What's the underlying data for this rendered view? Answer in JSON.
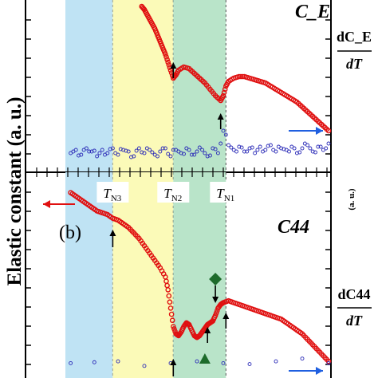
{
  "chart_data": [
    {
      "panel_label": "",
      "title": "C_E",
      "type": "scatter",
      "ylabel": "Elastic constant (a. u.)",
      "y2label_num": "dC_E",
      "y2label_den": "dT",
      "xlim": [
        0,
        100
      ],
      "ylim": [
        0,
        100
      ],
      "regions": [
        {
          "name": "phase-1",
          "from": 0,
          "to": 18,
          "color": "#bfe3f4"
        },
        {
          "name": "phase-2",
          "from": 18,
          "to": 41,
          "color": "#fbfab8"
        },
        {
          "name": "phase-3",
          "from": 41,
          "to": 61,
          "color": "#b9e4c9"
        }
      ],
      "series": [
        {
          "color": "#e01010",
          "points": [
            [
              29,
              100
            ],
            [
              30,
              98
            ],
            [
              31,
              95
            ],
            [
              32,
              92
            ],
            [
              33,
              89
            ],
            [
              34,
              86
            ],
            [
              35,
              82
            ],
            [
              36,
              78
            ],
            [
              37,
              74
            ],
            [
              38,
              70
            ],
            [
              39,
              65
            ],
            [
              40,
              60
            ],
            [
              41,
              55
            ],
            [
              42,
              57
            ],
            [
              43,
              60
            ],
            [
              45,
              62
            ],
            [
              47,
              61
            ],
            [
              49,
              58
            ],
            [
              51,
              55
            ],
            [
              53,
              52
            ],
            [
              55,
              48
            ],
            [
              57,
              44
            ],
            [
              59,
              41
            ],
            [
              60,
              44
            ],
            [
              61,
              50
            ],
            [
              62,
              53
            ],
            [
              64,
              55
            ],
            [
              66,
              56
            ],
            [
              68,
              56
            ],
            [
              70,
              55
            ],
            [
              72,
              54
            ],
            [
              74,
              53
            ],
            [
              76,
              52
            ],
            [
              78,
              50
            ],
            [
              80,
              48
            ],
            [
              82,
              46
            ],
            [
              84,
              44
            ],
            [
              86,
              42
            ],
            [
              88,
              40
            ],
            [
              90,
              37
            ],
            [
              92,
              34
            ],
            [
              94,
              31
            ],
            [
              96,
              28
            ],
            [
              98,
              25
            ],
            [
              100,
              22
            ]
          ]
        },
        {
          "color": "#2d2db8",
          "points": [
            [
              2,
              8
            ],
            [
              4,
              10
            ],
            [
              6,
              7
            ],
            [
              8,
              11
            ],
            [
              10,
              9
            ],
            [
              12,
              6
            ],
            [
              14,
              10
            ],
            [
              16,
              8
            ],
            [
              18,
              11
            ],
            [
              20,
              7
            ],
            [
              22,
              10
            ],
            [
              24,
              9
            ],
            [
              26,
              6
            ],
            [
              28,
              11
            ],
            [
              30,
              8
            ],
            [
              32,
              10
            ],
            [
              34,
              7
            ],
            [
              36,
              9
            ],
            [
              38,
              11
            ],
            [
              40,
              6
            ],
            [
              42,
              10
            ],
            [
              44,
              8
            ],
            [
              46,
              11
            ],
            [
              48,
              7
            ],
            [
              50,
              9
            ],
            [
              52,
              10
            ],
            [
              54,
              6
            ],
            [
              56,
              11
            ],
            [
              58,
              8
            ],
            [
              60,
              22
            ],
            [
              62,
              13
            ],
            [
              64,
              10
            ],
            [
              66,
              12
            ],
            [
              68,
              9
            ],
            [
              70,
              11
            ],
            [
              72,
              8
            ],
            [
              74,
              12
            ],
            [
              76,
              10
            ],
            [
              78,
              13
            ],
            [
              80,
              9
            ],
            [
              82,
              11
            ],
            [
              84,
              10
            ],
            [
              86,
              12
            ],
            [
              88,
              8
            ],
            [
              90,
              11
            ],
            [
              92,
              13
            ],
            [
              94,
              9
            ],
            [
              96,
              12
            ],
            [
              98,
              10
            ],
            [
              100,
              14
            ]
          ]
        }
      ]
    },
    {
      "panel_label": "(b)",
      "title": "C44",
      "type": "scatter",
      "ylabel": "",
      "y2label_num": "dC44",
      "y2label_den": "dT",
      "y2unit": "(a. u.)",
      "xlim": [
        0,
        100
      ],
      "ylim": [
        0,
        100
      ],
      "transitions": [
        {
          "x": 18,
          "label_main": "T",
          "label_sub": "N3"
        },
        {
          "x": 41,
          "label_main": "T",
          "label_sub": "N2"
        },
        {
          "x": 61,
          "label_main": "T",
          "label_sub": "N1"
        }
      ],
      "series": [
        {
          "color": "#e01010",
          "points": [
            [
              2,
              95
            ],
            [
              4,
              93
            ],
            [
              6,
              91
            ],
            [
              8,
              89
            ],
            [
              10,
              87
            ],
            [
              12,
              85
            ],
            [
              14,
              84
            ],
            [
              16,
              83
            ],
            [
              18,
              81
            ],
            [
              20,
              80
            ],
            [
              22,
              78
            ],
            [
              24,
              76
            ],
            [
              26,
              73
            ],
            [
              28,
              70
            ],
            [
              30,
              66
            ],
            [
              32,
              62
            ],
            [
              34,
              58
            ],
            [
              36,
              54
            ],
            [
              38,
              49
            ],
            [
              39,
              42
            ],
            [
              40,
              32
            ],
            [
              41,
              22
            ],
            [
              42,
              18
            ],
            [
              43,
              17
            ],
            [
              44,
              19
            ],
            [
              45,
              22
            ],
            [
              46,
              24
            ],
            [
              47,
              23
            ],
            [
              48,
              20
            ],
            [
              49,
              17
            ],
            [
              50,
              16
            ],
            [
              51,
              17
            ],
            [
              52,
              19
            ],
            [
              53,
              21
            ],
            [
              54,
              23
            ],
            [
              55,
              24
            ],
            [
              56,
              25
            ],
            [
              57,
              28
            ],
            [
              58,
              32
            ],
            [
              59,
              34
            ],
            [
              60,
              35
            ],
            [
              62,
              36
            ],
            [
              64,
              35
            ],
            [
              66,
              34
            ],
            [
              68,
              33
            ],
            [
              70,
              32
            ],
            [
              72,
              31
            ],
            [
              74,
              30
            ],
            [
              76,
              29
            ],
            [
              78,
              28
            ],
            [
              80,
              27
            ],
            [
              82,
              26
            ],
            [
              84,
              24
            ],
            [
              86,
              22
            ],
            [
              88,
              20
            ],
            [
              90,
              18
            ],
            [
              92,
              15
            ],
            [
              94,
              12
            ],
            [
              96,
              9
            ],
            [
              98,
              6
            ],
            [
              100,
              3
            ]
          ]
        },
        {
          "color": "#2d2db8",
          "points": [
            [
              2,
              2
            ],
            [
              20,
              3
            ],
            [
              40,
              2
            ],
            [
              60,
              2
            ],
            [
              80,
              3
            ],
            [
              100,
              2
            ]
          ]
        }
      ]
    }
  ],
  "colors": {
    "region_blue": "#bfe3f4",
    "region_yellow": "#fbfab8",
    "region_green": "#b9e4c9",
    "red_series": "#e01010",
    "blue_series": "#2d2db8",
    "red_arrow": "#e01010",
    "blue_arrow": "#1f5fe0",
    "diamond": "#1d6b2b",
    "triangle": "#1d6b2b"
  },
  "markers": [
    {
      "shape": "diamond",
      "name": "marker-diamond"
    },
    {
      "shape": "triangle",
      "name": "marker-triangle"
    }
  ]
}
